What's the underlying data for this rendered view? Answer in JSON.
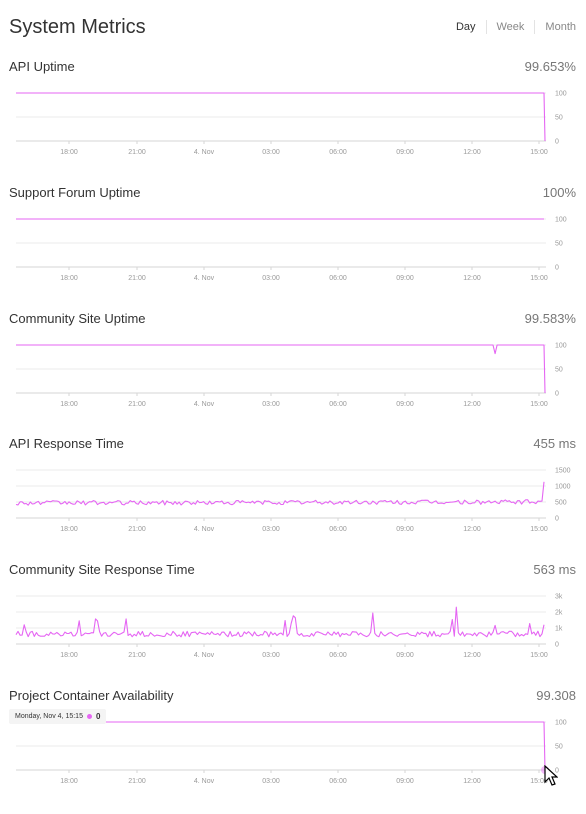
{
  "header": {
    "title": "System Metrics",
    "tabs": [
      {
        "label": "Day",
        "active": true
      },
      {
        "label": "Week",
        "active": false
      },
      {
        "label": "Month",
        "active": false
      }
    ]
  },
  "colors": {
    "series": "#e566f3",
    "grid": "#ebebeb",
    "axis": "#d6d6d6",
    "label": "#999999"
  },
  "x_ticks": [
    "18:00",
    "21:00",
    "4. Nov",
    "03:00",
    "06:00",
    "09:00",
    "12:00",
    "15:00"
  ],
  "metrics": [
    {
      "title": "API Uptime",
      "value": "99.653%",
      "chart_data": {
        "type": "line",
        "y_ticks": [
          "100",
          "50",
          "0"
        ],
        "ylim": [
          0,
          100
        ],
        "pattern": "uptime_drop_end"
      }
    },
    {
      "title": "Support Forum Uptime",
      "value": "100%",
      "chart_data": {
        "type": "line",
        "y_ticks": [
          "100",
          "50",
          "0"
        ],
        "ylim": [
          0,
          100
        ],
        "pattern": "flat_100"
      }
    },
    {
      "title": "Community Site Uptime",
      "value": "99.583%",
      "chart_data": {
        "type": "line",
        "y_ticks": [
          "100",
          "50",
          "0"
        ],
        "ylim": [
          0,
          100
        ],
        "pattern": "uptime_dip_and_drop"
      }
    },
    {
      "title": "API Response Time",
      "value": "455 ms",
      "chart_data": {
        "type": "line",
        "y_ticks": [
          "1500",
          "1000",
          "500",
          "0"
        ],
        "ylim": [
          0,
          1500
        ],
        "pattern": "noise_around_500"
      }
    },
    {
      "title": "Community Site Response Time",
      "value": "563 ms",
      "chart_data": {
        "type": "line",
        "y_ticks": [
          "3k",
          "2k",
          "1k",
          "0"
        ],
        "ylim": [
          0,
          3000
        ],
        "pattern": "spiky_around_600"
      }
    },
    {
      "title": "Project Container Availability",
      "value": "99.308",
      "tooltip": {
        "date": "Monday, Nov 4, 15:15",
        "value": "0"
      },
      "chart_data": {
        "type": "line",
        "y_ticks": [
          "100",
          "50",
          "0"
        ],
        "ylim": [
          0,
          100
        ],
        "pattern": "uptime_drop_end"
      }
    }
  ]
}
